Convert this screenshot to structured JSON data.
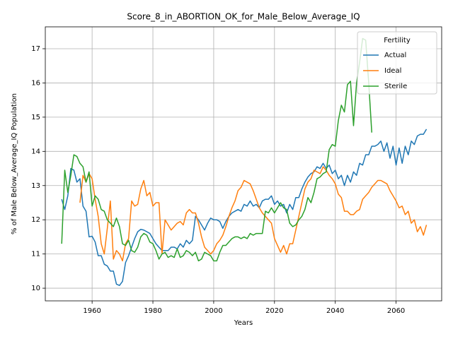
{
  "chart_data": {
    "type": "line",
    "title": "Score_8_in_ABORTION_OK_for_Male_Below_Average_IQ",
    "xlabel": "Years",
    "ylabel": "% of Male Below_Average_IQ Population",
    "legend_title": "Fertility",
    "legend": "upper right",
    "grid": true,
    "xlim": [
      1944.6,
      2075.0
    ],
    "ylim": [
      9.63,
      17.64
    ],
    "xticks": [
      1960,
      1980,
      2000,
      2020,
      2040,
      2060
    ],
    "yticks": [
      10,
      11,
      12,
      13,
      14,
      15,
      16,
      17
    ],
    "x": [
      1950,
      1951,
      1952,
      1953,
      1954,
      1955,
      1956,
      1957,
      1958,
      1959,
      1960,
      1961,
      1962,
      1963,
      1964,
      1965,
      1966,
      1967,
      1968,
      1969,
      1970,
      1971,
      1972,
      1973,
      1974,
      1975,
      1976,
      1977,
      1978,
      1979,
      1980,
      1981,
      1982,
      1983,
      1984,
      1985,
      1986,
      1987,
      1988,
      1989,
      1990,
      1991,
      1992,
      1993,
      1994,
      1995,
      1996,
      1997,
      1998,
      1999,
      2000,
      2001,
      2002,
      2003,
      2004,
      2005,
      2006,
      2007,
      2008,
      2009,
      2010,
      2011,
      2012,
      2013,
      2014,
      2015,
      2016,
      2017,
      2018,
      2019,
      2020,
      2021,
      2022,
      2023,
      2024,
      2025,
      2026,
      2027,
      2028,
      2029,
      2030,
      2031,
      2032,
      2033,
      2034,
      2035,
      2036,
      2037,
      2038,
      2039,
      2040,
      2041,
      2042,
      2043,
      2044,
      2045,
      2046,
      2047,
      2048,
      2049,
      2050,
      2051,
      2052,
      2053,
      2054,
      2055,
      2056,
      2057,
      2058,
      2059,
      2060,
      2061,
      2062,
      2063,
      2064,
      2065,
      2066,
      2067,
      2068,
      2069,
      2070
    ],
    "series": [
      {
        "name": "Actual",
        "color": "#1f77b4",
        "values": [
          12.6,
          12.3,
          12.7,
          13.5,
          13.45,
          13.1,
          13.2,
          12.4,
          12.25,
          11.5,
          11.52,
          11.35,
          10.95,
          10.95,
          10.7,
          10.65,
          10.5,
          10.5,
          10.12,
          10.08,
          10.2,
          10.75,
          10.95,
          11.2,
          11.45,
          11.65,
          11.72,
          11.7,
          11.65,
          11.6,
          11.45,
          11.3,
          11.2,
          11.1,
          11.1,
          11.1,
          11.2,
          11.2,
          11.15,
          11.3,
          11.2,
          11.4,
          11.3,
          11.4,
          12.1,
          12.0,
          11.85,
          11.7,
          11.9,
          12.05,
          12.0,
          12.0,
          11.95,
          11.75,
          11.95,
          12.1,
          12.2,
          12.25,
          12.3,
          12.25,
          12.45,
          12.4,
          12.55,
          12.4,
          12.45,
          12.35,
          12.55,
          12.6,
          12.6,
          12.7,
          12.45,
          12.55,
          12.4,
          12.45,
          12.2,
          12.45,
          12.3,
          12.65,
          12.65,
          12.9,
          13.1,
          13.25,
          13.35,
          13.4,
          13.55,
          13.5,
          13.65,
          13.5,
          13.6,
          13.35,
          13.45,
          13.2,
          13.3,
          13.0,
          13.3,
          13.1,
          13.4,
          13.3,
          13.65,
          13.6,
          13.9,
          13.9,
          14.15,
          14.15,
          14.2,
          14.3,
          14.0,
          14.25,
          13.8,
          14.15,
          13.6,
          14.1,
          13.65,
          14.15,
          13.9,
          14.3,
          14.2,
          14.45,
          14.5,
          14.5,
          14.65
        ]
      },
      {
        "name": "Ideal",
        "color": "#ff7f0e",
        "values": [
          null,
          null,
          null,
          null,
          null,
          null,
          12.5,
          13.3,
          13.1,
          13.35,
          13.2,
          12.6,
          12.1,
          11.3,
          11.0,
          11.75,
          12.55,
          10.85,
          11.1,
          11.0,
          10.8,
          11.3,
          11.45,
          12.55,
          12.4,
          12.45,
          12.9,
          13.15,
          12.7,
          12.8,
          12.4,
          12.5,
          12.5,
          11.0,
          12.0,
          11.85,
          11.7,
          11.8,
          11.9,
          11.95,
          11.85,
          12.2,
          12.3,
          12.2,
          12.2,
          11.9,
          11.5,
          11.2,
          11.1,
          11.0,
          11.1,
          11.3,
          11.4,
          11.55,
          11.8,
          12.1,
          12.35,
          12.55,
          12.85,
          12.95,
          13.15,
          13.1,
          13.05,
          12.85,
          12.6,
          12.35,
          12.2,
          12.1,
          12.0,
          11.9,
          11.45,
          11.25,
          11.05,
          11.25,
          11.0,
          11.3,
          11.3,
          11.7,
          12.1,
          12.5,
          12.9,
          13.1,
          13.2,
          13.45,
          13.4,
          13.35,
          13.55,
          13.45,
          13.3,
          13.2,
          13.05,
          12.75,
          12.65,
          12.25,
          12.25,
          12.15,
          12.15,
          12.25,
          12.3,
          12.6,
          12.7,
          12.8,
          12.95,
          13.05,
          13.15,
          13.15,
          13.1,
          13.05,
          12.85,
          12.7,
          12.55,
          12.35,
          12.4,
          12.15,
          12.25,
          11.9,
          12.0,
          11.65,
          11.8,
          11.55,
          11.85
        ]
      },
      {
        "name": "Sterile",
        "color": "#2ca02c",
        "values": [
          11.3,
          13.45,
          12.8,
          13.3,
          13.9,
          13.85,
          13.65,
          13.55,
          13.1,
          13.4,
          12.4,
          12.7,
          12.6,
          12.3,
          12.25,
          12.0,
          11.9,
          11.8,
          12.05,
          11.8,
          11.3,
          11.25,
          11.4,
          11.1,
          11.05,
          11.2,
          11.5,
          11.6,
          11.55,
          11.35,
          11.3,
          11.1,
          10.85,
          11.0,
          11.05,
          10.9,
          10.95,
          10.9,
          11.15,
          10.9,
          10.95,
          11.1,
          11.05,
          10.95,
          11.05,
          10.8,
          10.85,
          11.05,
          11.0,
          10.95,
          10.8,
          10.8,
          11.05,
          11.25,
          11.25,
          11.35,
          11.45,
          11.5,
          11.5,
          11.45,
          11.5,
          11.45,
          11.6,
          11.55,
          11.6,
          11.6,
          11.6,
          12.25,
          12.2,
          12.35,
          12.2,
          12.35,
          12.5,
          12.35,
          12.3,
          11.9,
          11.8,
          11.85,
          12.0,
          12.1,
          12.3,
          12.65,
          12.5,
          12.8,
          13.2,
          13.25,
          13.35,
          13.4,
          14.05,
          14.2,
          14.15,
          14.9,
          15.35,
          15.15,
          15.95,
          16.05,
          14.75,
          16.0,
          16.6,
          17.3,
          17.25,
          16.0,
          14.55,
          null,
          null,
          null,
          null,
          null,
          null,
          null,
          null,
          null,
          null,
          null,
          null,
          null,
          null,
          null,
          null,
          null,
          null
        ]
      }
    ]
  }
}
